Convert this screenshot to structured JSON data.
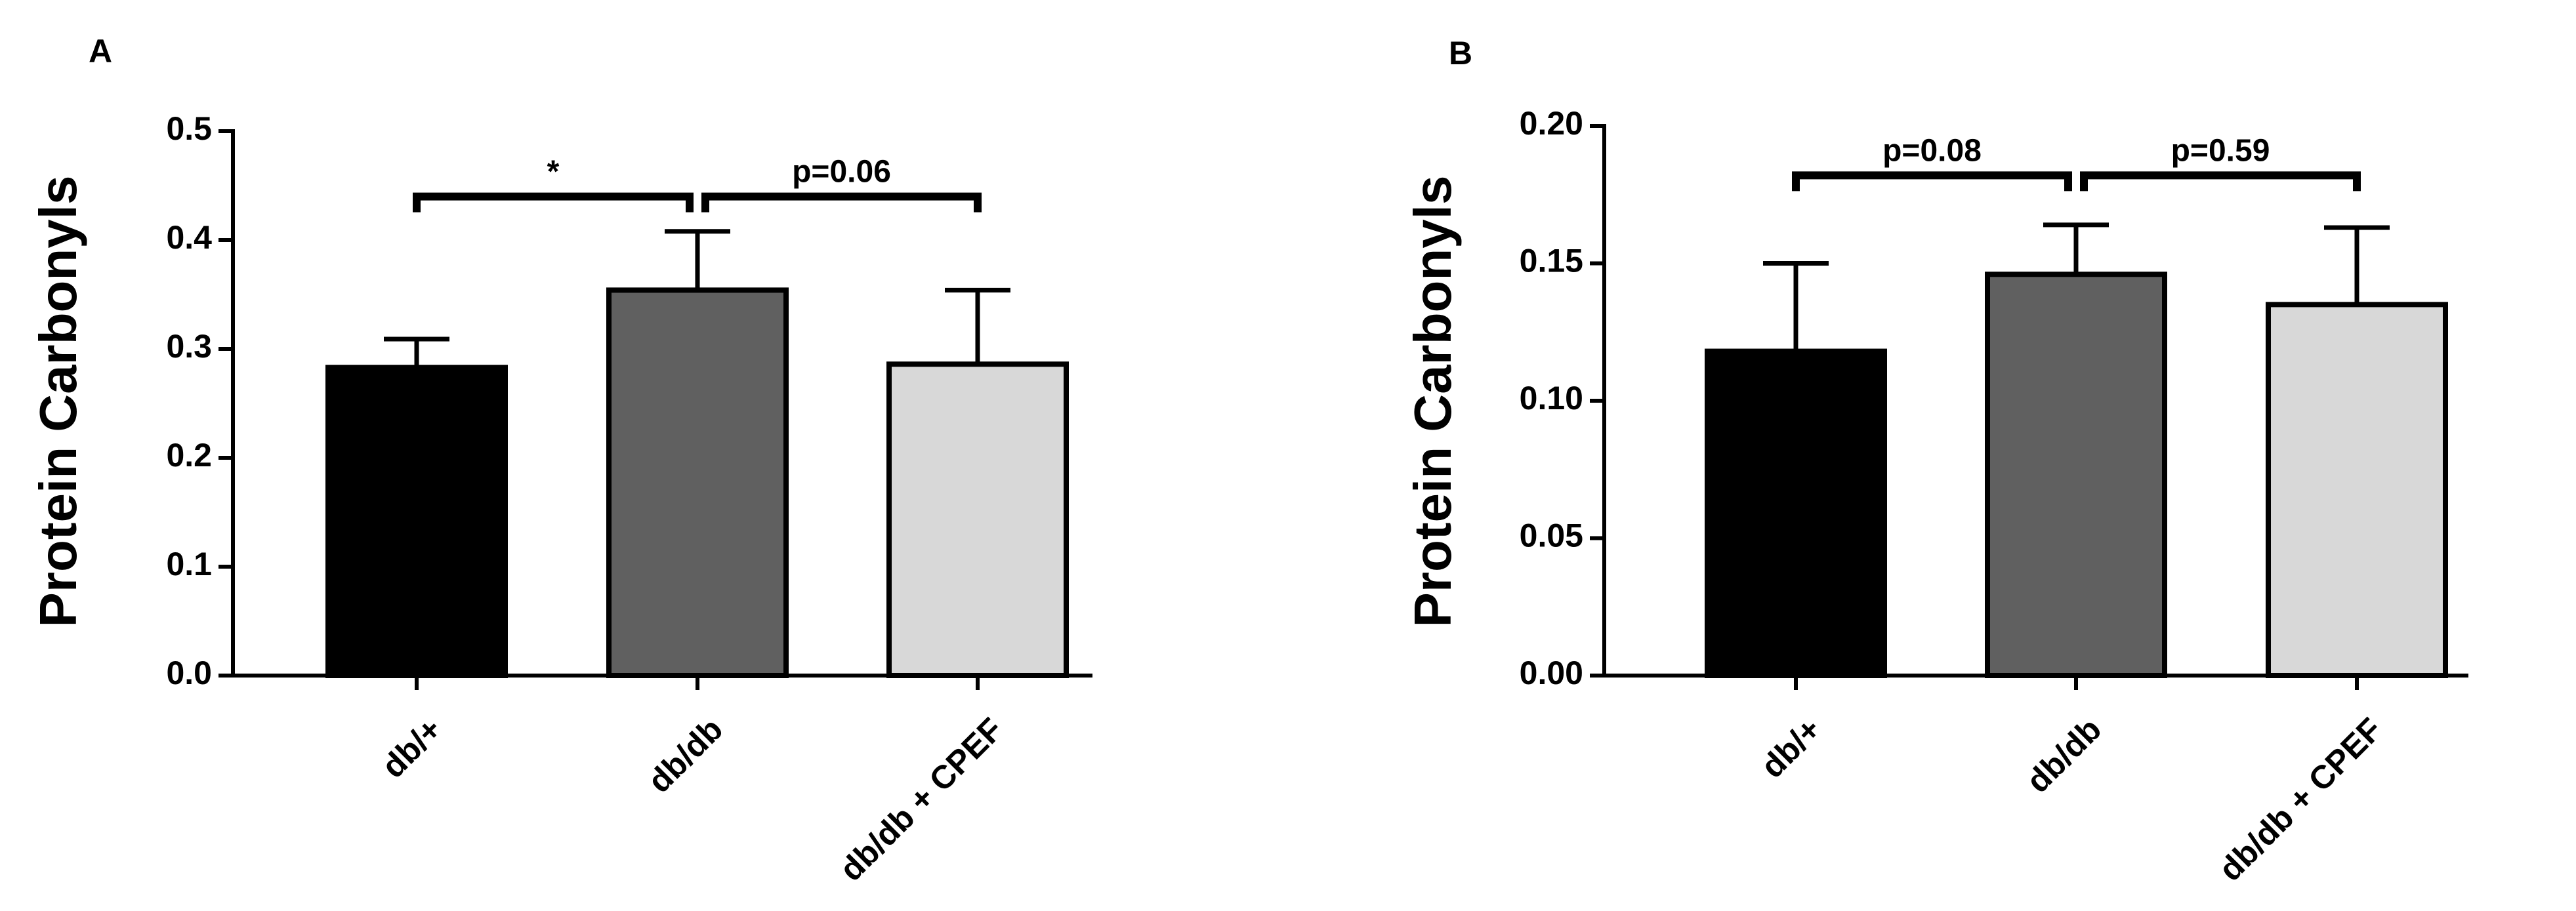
{
  "colors": {
    "bar_fills": [
      "#000000",
      "#606060",
      "#d8d8d8"
    ],
    "stroke": "#000000"
  },
  "chart_data": [
    {
      "type": "bar",
      "panel_label": "A",
      "title": "",
      "xlabel": "",
      "ylabel": "Protein Carbonyls",
      "categories": [
        "db/+",
        "db/db",
        "db/db + CPEF"
      ],
      "values": [
        0.283,
        0.354,
        0.286
      ],
      "error_upper": [
        0.026,
        0.054,
        0.068
      ],
      "ylim": [
        0,
        0.5
      ],
      "yticks": [
        0.0,
        0.1,
        0.2,
        0.3,
        0.4,
        0.5
      ],
      "ytick_labels": [
        "0.0",
        "0.1",
        "0.2",
        "0.3",
        "0.4",
        "0.5"
      ],
      "grid": false,
      "comparisons": [
        {
          "from": 0,
          "to": 1,
          "label": "*",
          "y": 0.44
        },
        {
          "from": 1,
          "to": 2,
          "label": "p=0.06",
          "y": 0.44
        }
      ]
    },
    {
      "type": "bar",
      "panel_label": "B",
      "title": "",
      "xlabel": "",
      "ylabel": "Protein Carbonyls",
      "categories": [
        "db/+",
        "db/db",
        "db/db + CPEF"
      ],
      "values": [
        0.118,
        0.146,
        0.135
      ],
      "error_upper": [
        0.032,
        0.018,
        0.028
      ],
      "ylim": [
        0,
        0.2
      ],
      "yticks": [
        0.0,
        0.05,
        0.1,
        0.15,
        0.2
      ],
      "ytick_labels": [
        "0.00",
        "0.05",
        "0.10",
        "0.15",
        "0.20"
      ],
      "grid": false,
      "comparisons": [
        {
          "from": 0,
          "to": 1,
          "label": "p=0.08",
          "y": 0.182
        },
        {
          "from": 1,
          "to": 2,
          "label": "p=0.59",
          "y": 0.182
        }
      ]
    }
  ]
}
